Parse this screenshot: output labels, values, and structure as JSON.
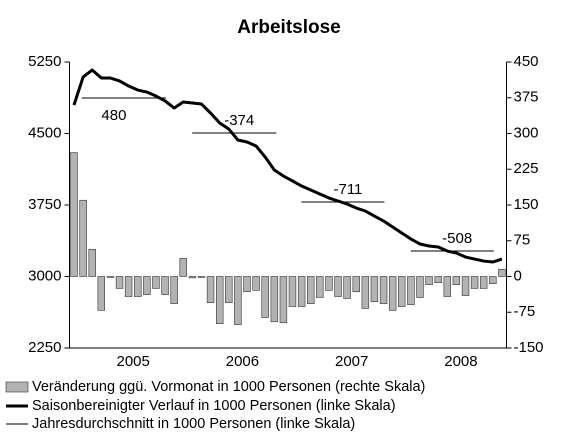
{
  "chart_data": {
    "type": "combo",
    "title": "Arbeitslose",
    "x": [
      2004.958,
      2005.042,
      2005.125,
      2005.208,
      2005.292,
      2005.375,
      2005.458,
      2005.542,
      2005.625,
      2005.708,
      2005.792,
      2005.875,
      2005.958,
      2006.042,
      2006.125,
      2006.208,
      2006.292,
      2006.375,
      2006.458,
      2006.542,
      2006.625,
      2006.708,
      2006.792,
      2006.875,
      2006.958,
      2007.042,
      2007.125,
      2007.208,
      2007.292,
      2007.375,
      2007.458,
      2007.542,
      2007.625,
      2007.708,
      2007.792,
      2007.875,
      2007.958,
      2008.042,
      2008.125,
      2008.208,
      2008.292,
      2008.375,
      2008.458,
      2008.542,
      2008.625,
      2008.708,
      2008.792,
      2008.875
    ],
    "xlim": [
      2004.917,
      2008.917
    ],
    "xticks": [
      {
        "value": 2005.5,
        "label": "2005"
      },
      {
        "value": 2006.5,
        "label": "2006"
      },
      {
        "value": 2007.5,
        "label": "2007"
      },
      {
        "value": 2008.5,
        "label": "2008"
      }
    ],
    "ylim": [
      2250,
      5250
    ],
    "yticks": [
      2250,
      3000,
      3750,
      4500,
      5250
    ],
    "y2lim": [
      -150,
      450
    ],
    "y2ticks": [
      -150,
      -75,
      0,
      75,
      150,
      225,
      300,
      375,
      450
    ],
    "series": [
      {
        "name": "Veränderung ggü. Vormonat in 1000 Personen (rechte Skala)",
        "type": "bar",
        "axis": "y2",
        "color": "#b3b3b3",
        "values": [
          260,
          160,
          57,
          -71,
          -2,
          -25,
          -42,
          -42,
          -38,
          -25,
          -38,
          -57,
          38,
          -3,
          -2,
          -55,
          -99,
          -55,
          -101,
          -32,
          -29,
          -86,
          -95,
          -97,
          -63,
          -63,
          -57,
          -44,
          -29,
          -42,
          -46,
          -32,
          -67,
          -53,
          -57,
          -71,
          -63,
          -59,
          -44,
          -17,
          -13,
          -42,
          -17,
          -40,
          -25,
          -25,
          -15,
          15
        ]
      },
      {
        "name": "Saisonbereinigter Verlauf in 1000 Personen (linke Skala)",
        "type": "line",
        "color": "#000000",
        "values": [
          4799,
          5093,
          5166,
          5082,
          5082,
          5051,
          4998,
          4956,
          4935,
          4893,
          4841,
          4767,
          4830,
          4820,
          4809,
          4715,
          4610,
          4547,
          4432,
          4411,
          4369,
          4253,
          4117,
          4054,
          4002,
          3949,
          3907,
          3865,
          3823,
          3792,
          3760,
          3718,
          3687,
          3634,
          3582,
          3519,
          3456,
          3393,
          3341,
          3320,
          3309,
          3267,
          3246,
          3204,
          3183,
          3162,
          3152,
          3183
        ]
      }
    ],
    "annual": {
      "name": "Jahresdurchschnitt in 1000 Personen (linke Skala)",
      "color": "#000000",
      "x_start": [
        2005.03,
        2006.04,
        2007.04,
        2008.04
      ],
      "x_end": [
        2005.8,
        2006.81,
        2007.8,
        2008.8
      ],
      "values": [
        4872,
        4505,
        3781,
        3267
      ],
      "labels": [
        "480",
        "-374",
        "-711",
        "-508"
      ]
    }
  }
}
